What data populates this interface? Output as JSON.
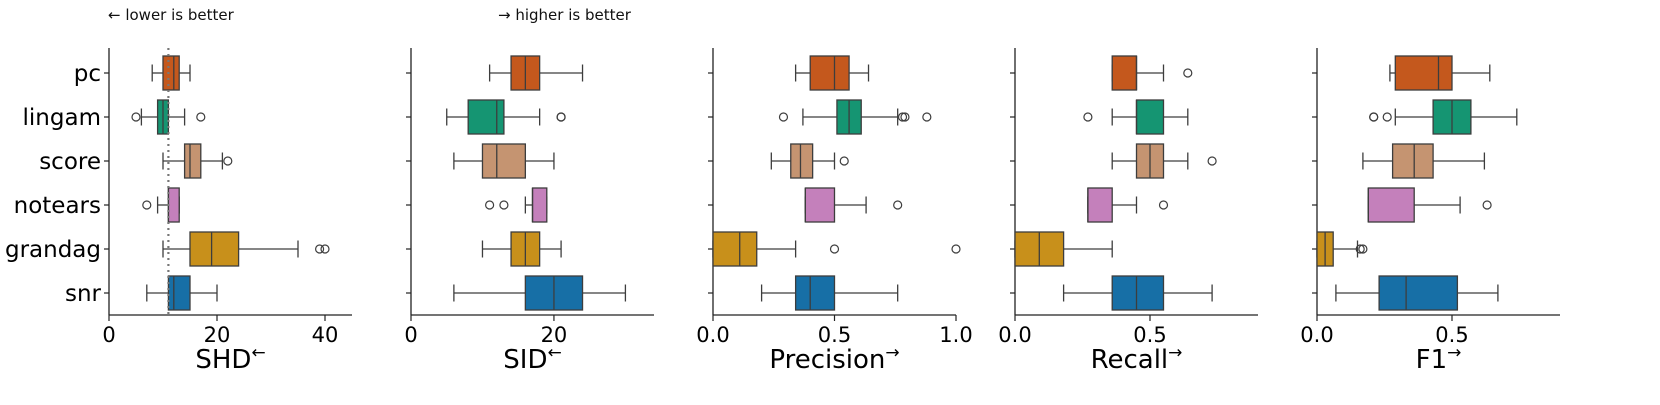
{
  "annotations": {
    "lower": "← lower is better",
    "higher": "→ higher is better"
  },
  "chart_data": {
    "type": "boxplot",
    "categories": [
      "pc",
      "lingam",
      "score",
      "notears",
      "grandag",
      "snr"
    ],
    "category_colors": [
      "#c4581d",
      "#159572",
      "#c59471",
      "#c480bb",
      "#c8901b",
      "#176fa6"
    ],
    "panels": [
      {
        "xlabel": "SHD",
        "arrow": "←",
        "xlim": [
          0,
          45
        ],
        "xticks": [
          0,
          20,
          40
        ],
        "reference_line": 11,
        "boxes": [
          {
            "whislo": 8,
            "q1": 10,
            "med": 12,
            "q3": 13,
            "whishi": 15,
            "fliers": []
          },
          {
            "whislo": 6,
            "q1": 9,
            "med": 10,
            "q3": 11,
            "whishi": 14,
            "fliers": [
              5,
              17
            ]
          },
          {
            "whislo": 10,
            "q1": 14,
            "med": 15,
            "q3": 17,
            "whishi": 21,
            "fliers": [
              22
            ]
          },
          {
            "whislo": 9,
            "q1": 11,
            "med": 11,
            "q3": 13,
            "whishi": 13,
            "fliers": [
              7
            ]
          },
          {
            "whislo": 10,
            "q1": 15,
            "med": 19,
            "q3": 24,
            "whishi": 35,
            "fliers": [
              39,
              40
            ]
          },
          {
            "whislo": 7,
            "q1": 11,
            "med": 12,
            "q3": 15,
            "whishi": 20,
            "fliers": []
          }
        ]
      },
      {
        "xlabel": "SID",
        "arrow": "←",
        "xlim": [
          0,
          34
        ],
        "xticks": [
          0,
          20
        ],
        "boxes": [
          {
            "whislo": 11,
            "q1": 14,
            "med": 16,
            "q3": 18,
            "whishi": 24,
            "fliers": []
          },
          {
            "whislo": 5,
            "q1": 8,
            "med": 12,
            "q3": 13,
            "whishi": 18,
            "fliers": [
              21,
              21
            ]
          },
          {
            "whislo": 6,
            "q1": 10,
            "med": 12,
            "q3": 16,
            "whishi": 20,
            "fliers": []
          },
          {
            "whislo": 16,
            "q1": 17,
            "med": 17,
            "q3": 19,
            "whishi": 19,
            "fliers": [
              11,
              13
            ]
          },
          {
            "whislo": 10,
            "q1": 14,
            "med": 16,
            "q3": 18,
            "whishi": 21,
            "fliers": []
          },
          {
            "whislo": 6,
            "q1": 16,
            "med": 20,
            "q3": 24,
            "whishi": 30,
            "fliers": []
          }
        ]
      },
      {
        "xlabel": "Precision",
        "arrow": "→",
        "xlim": [
          0,
          1.0
        ],
        "xticks": [
          0.0,
          0.5,
          1.0
        ],
        "boxes": [
          {
            "whislo": 0.34,
            "q1": 0.4,
            "med": 0.5,
            "q3": 0.56,
            "whishi": 0.64,
            "fliers": []
          },
          {
            "whislo": 0.37,
            "q1": 0.51,
            "med": 0.56,
            "q3": 0.61,
            "whishi": 0.76,
            "fliers": [
              0.29,
              0.78,
              0.79,
              0.88
            ]
          },
          {
            "whislo": 0.24,
            "q1": 0.32,
            "med": 0.36,
            "q3": 0.41,
            "whishi": 0.5,
            "fliers": [
              0.54
            ]
          },
          {
            "whislo": 0.38,
            "q1": 0.38,
            "med": 0.38,
            "q3": 0.5,
            "whishi": 0.63,
            "fliers": [
              0.76
            ]
          },
          {
            "whislo": 0.0,
            "q1": 0.0,
            "med": 0.11,
            "q3": 0.18,
            "whishi": 0.34,
            "fliers": [
              0.5,
              1.0
            ]
          },
          {
            "whislo": 0.2,
            "q1": 0.34,
            "med": 0.4,
            "q3": 0.5,
            "whishi": 0.76,
            "fliers": []
          }
        ]
      },
      {
        "xlabel": "Recall",
        "arrow": "→",
        "xlim": [
          0,
          0.9
        ],
        "xticks": [
          0.0,
          0.5
        ],
        "boxes": [
          {
            "whislo": 0.36,
            "q1": 0.36,
            "med": 0.45,
            "q3": 0.45,
            "whishi": 0.55,
            "fliers": [
              0.64
            ]
          },
          {
            "whislo": 0.36,
            "q1": 0.45,
            "med": 0.45,
            "q3": 0.55,
            "whishi": 0.64,
            "fliers": [
              0.27
            ]
          },
          {
            "whislo": 0.36,
            "q1": 0.45,
            "med": 0.5,
            "q3": 0.55,
            "whishi": 0.64,
            "fliers": [
              0.73
            ]
          },
          {
            "whislo": 0.27,
            "q1": 0.27,
            "med": 0.27,
            "q3": 0.36,
            "whishi": 0.45,
            "fliers": [
              0.55
            ]
          },
          {
            "whislo": 0.0,
            "q1": 0.0,
            "med": 0.09,
            "q3": 0.18,
            "whishi": 0.36,
            "fliers": []
          },
          {
            "whislo": 0.18,
            "q1": 0.36,
            "med": 0.45,
            "q3": 0.55,
            "whishi": 0.73,
            "fliers": []
          }
        ]
      },
      {
        "xlabel": "F1",
        "arrow": "→",
        "xlim": [
          0,
          0.9
        ],
        "xticks": [
          0.0,
          0.5
        ],
        "boxes": [
          {
            "whislo": 0.27,
            "q1": 0.29,
            "med": 0.45,
            "q3": 0.5,
            "whishi": 0.64,
            "fliers": []
          },
          {
            "whislo": 0.29,
            "q1": 0.43,
            "med": 0.5,
            "q3": 0.57,
            "whishi": 0.74,
            "fliers": [
              0.21,
              0.21,
              0.26
            ]
          },
          {
            "whislo": 0.17,
            "q1": 0.28,
            "med": 0.36,
            "q3": 0.43,
            "whishi": 0.62,
            "fliers": []
          },
          {
            "whislo": 0.19,
            "q1": 0.19,
            "med": 0.19,
            "q3": 0.36,
            "whishi": 0.53,
            "fliers": [
              0.63
            ]
          },
          {
            "whislo": 0.0,
            "q1": 0.0,
            "med": 0.03,
            "q3": 0.06,
            "whishi": 0.15,
            "fliers": [
              0.16,
              0.17
            ]
          },
          {
            "whislo": 0.07,
            "q1": 0.23,
            "med": 0.33,
            "q3": 0.52,
            "whishi": 0.67,
            "fliers": []
          }
        ]
      }
    ]
  }
}
